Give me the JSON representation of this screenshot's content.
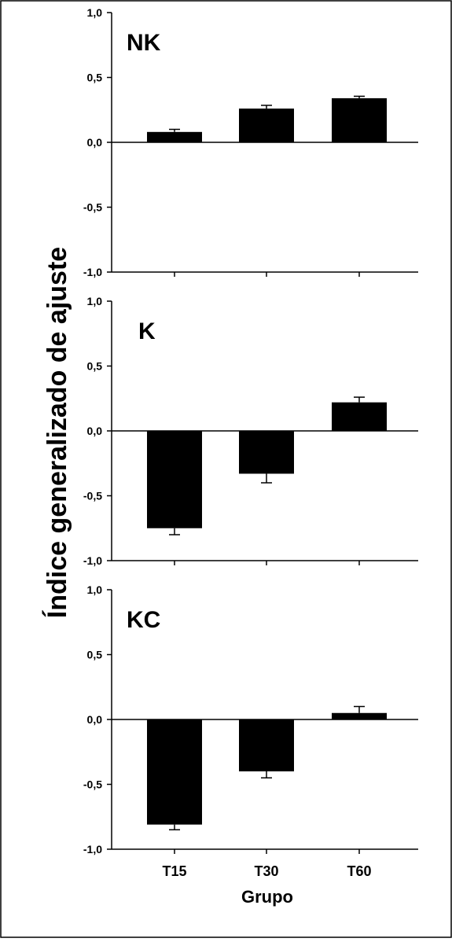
{
  "ylabel": "Índice generalizado de ajuste",
  "xlabel": "Grupo",
  "colors": {
    "bar": "#000000",
    "axis": "#000000",
    "background": "#ffffff"
  },
  "chart_data": [
    {
      "type": "bar",
      "panel_label": "NK",
      "categories": [
        "T15",
        "T30",
        "T60"
      ],
      "values": [
        0.08,
        0.26,
        0.34
      ],
      "errors": [
        0.02,
        0.025,
        0.015
      ],
      "ylim": [
        -1.0,
        1.0
      ],
      "yticks": [
        "1,0",
        "0,5",
        "0,0",
        "-0,5",
        "-1,0"
      ],
      "show_x_tick_labels": false
    },
    {
      "type": "bar",
      "panel_label": "K",
      "categories": [
        "T15",
        "T30",
        "T60"
      ],
      "values": [
        -0.75,
        -0.33,
        0.22
      ],
      "errors": [
        0.05,
        0.07,
        0.04
      ],
      "ylim": [
        -1.0,
        1.0
      ],
      "yticks": [
        "1,0",
        "0,5",
        "0,0",
        "-0,5",
        "-1,0"
      ],
      "show_x_tick_labels": false
    },
    {
      "type": "bar",
      "panel_label": "KC",
      "categories": [
        "T15",
        "T30",
        "T60"
      ],
      "values": [
        -0.81,
        -0.4,
        0.05
      ],
      "errors": [
        0.04,
        0.05,
        0.05
      ],
      "ylim": [
        -1.0,
        1.0
      ],
      "yticks": [
        "1,0",
        "0,5",
        "0,0",
        "-0,5",
        "-1,0"
      ],
      "show_x_tick_labels": true
    }
  ]
}
